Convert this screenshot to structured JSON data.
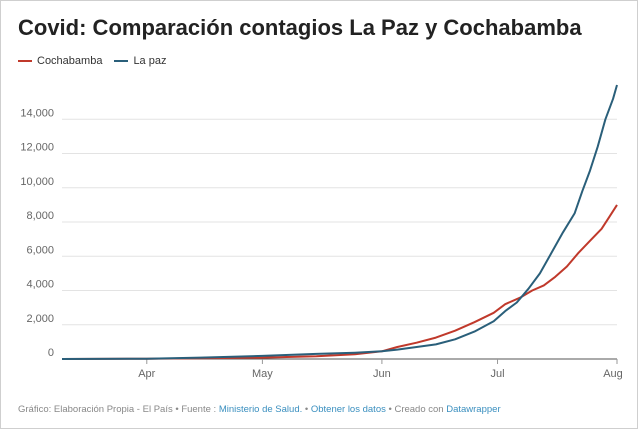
{
  "title": "Covid: Comparación contagios La Paz y Cochabamba",
  "footer": {
    "prefix": "Gráfico: Elaboración Propia - El País • Fuente : ",
    "source_link": "Ministerio de Salud.",
    "sep1": " • ",
    "data_link": "Obtener los datos",
    "sep2": " • Creado con ",
    "tool_link": "Datawrapper"
  },
  "chart_data": {
    "type": "line",
    "title": "Covid: Comparación contagios La Paz y Cochabamba",
    "xlabel": "",
    "ylabel": "",
    "x_ticks": [
      "Apr",
      "May",
      "Jun",
      "Jul",
      "Aug"
    ],
    "y_ticks": [
      "0",
      "2,000",
      "4,000",
      "6,000",
      "8,000",
      "10,000",
      "12,000",
      "14,000"
    ],
    "ylim": [
      0,
      16000
    ],
    "xlim": [
      "2020-03-10",
      "2020-08-01"
    ],
    "grid": "horizontal",
    "legend_position": "top-left",
    "series": [
      {
        "name": "Cochabamba",
        "color": "#c0392b",
        "points": [
          [
            "2020-03-10",
            0
          ],
          [
            "2020-04-01",
            15
          ],
          [
            "2020-04-15",
            40
          ],
          [
            "2020-05-01",
            80
          ],
          [
            "2020-05-15",
            160
          ],
          [
            "2020-05-25",
            280
          ],
          [
            "2020-06-01",
            450
          ],
          [
            "2020-06-05",
            700
          ],
          [
            "2020-06-10",
            950
          ],
          [
            "2020-06-15",
            1250
          ],
          [
            "2020-06-20",
            1650
          ],
          [
            "2020-06-25",
            2150
          ],
          [
            "2020-06-30",
            2700
          ],
          [
            "2020-07-03",
            3200
          ],
          [
            "2020-07-07",
            3600
          ],
          [
            "2020-07-10",
            4000
          ],
          [
            "2020-07-13",
            4300
          ],
          [
            "2020-07-16",
            4800
          ],
          [
            "2020-07-19",
            5400
          ],
          [
            "2020-07-22",
            6200
          ],
          [
            "2020-07-25",
            6900
          ],
          [
            "2020-07-28",
            7600
          ],
          [
            "2020-07-30",
            8300
          ],
          [
            "2020-08-01",
            9000
          ]
        ]
      },
      {
        "name": "La paz",
        "color": "#2a5f7a",
        "points": [
          [
            "2020-03-10",
            0
          ],
          [
            "2020-04-01",
            20
          ],
          [
            "2020-04-15",
            80
          ],
          [
            "2020-05-01",
            180
          ],
          [
            "2020-05-15",
            300
          ],
          [
            "2020-05-25",
            370
          ],
          [
            "2020-06-01",
            450
          ],
          [
            "2020-06-05",
            550
          ],
          [
            "2020-06-10",
            700
          ],
          [
            "2020-06-15",
            850
          ],
          [
            "2020-06-20",
            1150
          ],
          [
            "2020-06-25",
            1600
          ],
          [
            "2020-06-30",
            2200
          ],
          [
            "2020-07-03",
            2800
          ],
          [
            "2020-07-06",
            3300
          ],
          [
            "2020-07-09",
            4100
          ],
          [
            "2020-07-12",
            5000
          ],
          [
            "2020-07-15",
            6200
          ],
          [
            "2020-07-18",
            7400
          ],
          [
            "2020-07-21",
            8500
          ],
          [
            "2020-07-23",
            9800
          ],
          [
            "2020-07-25",
            11000
          ],
          [
            "2020-07-27",
            12400
          ],
          [
            "2020-07-29",
            14000
          ],
          [
            "2020-07-31",
            15200
          ],
          [
            "2020-08-01",
            16000
          ]
        ]
      }
    ]
  }
}
